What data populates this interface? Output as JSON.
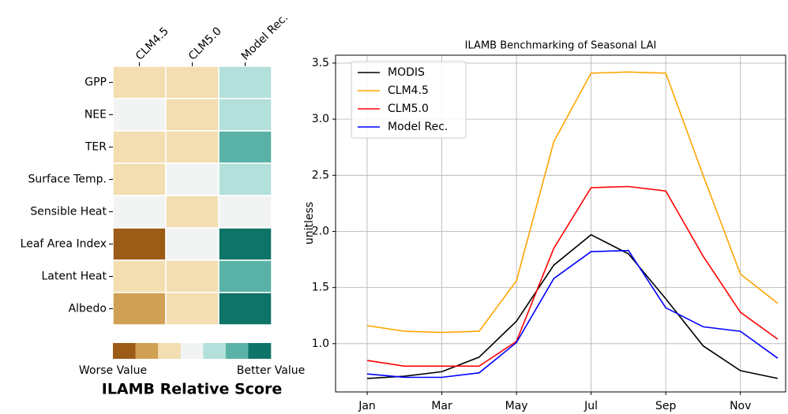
{
  "chart_data": [
    {
      "type": "heatmap",
      "title": "ILAMB Relative Score",
      "x_categories": [
        "CLM4.5",
        "CLM5.0",
        "Model Rec."
      ],
      "y_categories": [
        "GPP",
        "NEE",
        "TER",
        "Surface Temp.",
        "Sensible Heat",
        "Leaf Area Index",
        "Latent Heat",
        "Albedo"
      ],
      "values": [
        [
          2,
          2,
          4
        ],
        [
          3,
          2,
          4
        ],
        [
          2,
          2,
          5
        ],
        [
          2,
          3,
          4
        ],
        [
          3,
          2,
          3
        ],
        [
          0,
          3,
          6
        ],
        [
          2,
          2,
          5
        ],
        [
          1,
          2,
          6
        ]
      ],
      "zlim": [
        0,
        6
      ],
      "colors": [
        "#9c5b16",
        "#d0a055",
        "#f2deb0",
        "#f2f4f3",
        "#b3e0da",
        "#5ab2a6",
        "#0e7468"
      ],
      "colorbar_labels": [
        "Worse Value",
        "Better Value"
      ]
    },
    {
      "type": "line",
      "title": "ILAMB Benchmarking of Seasonal LAI",
      "y_label": "unitless",
      "categories": [
        "Jan",
        null,
        "Mar",
        null,
        "May",
        null,
        "Jul",
        null,
        "Sep",
        null,
        "Nov",
        null
      ],
      "series": [
        {
          "name": "MODIS",
          "color": "#000000",
          "values": [
            0.69,
            0.71,
            0.75,
            0.88,
            1.2,
            1.7,
            1.97,
            1.8,
            1.4,
            0.98,
            0.76,
            0.69
          ]
        },
        {
          "name": "CLM4.5",
          "color": "#ffa500",
          "values": [
            1.16,
            1.11,
            1.1,
            1.11,
            1.56,
            2.8,
            3.41,
            3.42,
            3.41,
            2.5,
            1.62,
            1.36
          ]
        },
        {
          "name": "CLM5.0",
          "color": "#ff0000",
          "values": [
            0.85,
            0.8,
            0.8,
            0.8,
            1.02,
            1.85,
            2.39,
            2.4,
            2.36,
            1.78,
            1.28,
            1.04
          ]
        },
        {
          "name": "Model Rec.",
          "color": "#0000ff",
          "values": [
            0.73,
            0.7,
            0.7,
            0.74,
            1.01,
            1.58,
            1.82,
            1.83,
            1.32,
            1.15,
            1.11,
            0.87
          ]
        }
      ],
      "ylim": [
        0.57,
        3.57
      ],
      "yticks": [
        {
          "value": 1,
          "label": "1.0"
        },
        1.5,
        {
          "value": 2,
          "label": "2.0"
        },
        2.5,
        {
          "value": 3,
          "label": "3.0"
        },
        3.5
      ],
      "grid": true,
      "legend": "upper left"
    }
  ]
}
